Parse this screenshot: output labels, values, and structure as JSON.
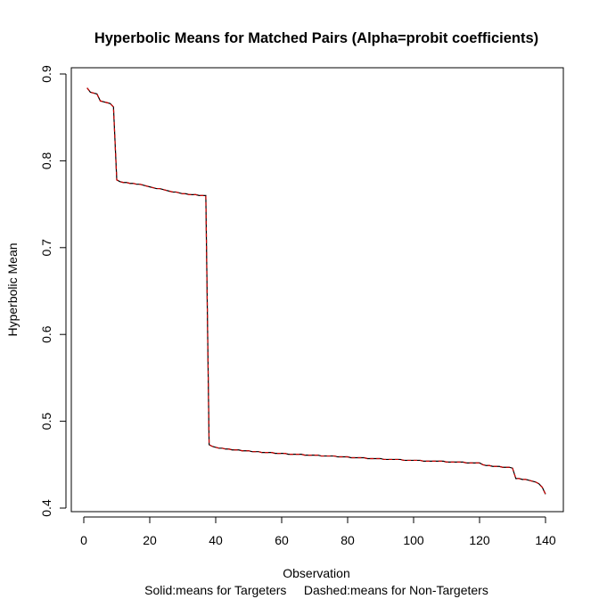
{
  "chart_data": {
    "type": "line",
    "title": "Hyperbolic Means for Matched Pairs (Alpha=probit coefficients)",
    "xlabel": "Observation",
    "subtitle": "Solid:means for Targeters     Dashed:means for Non-Targeters",
    "ylabel": "Hyperbolic Mean",
    "xlim": [
      0,
      140
    ],
    "ylim": [
      0.4,
      0.9
    ],
    "xticks": [
      "0",
      "20",
      "40",
      "60",
      "80",
      "100",
      "120",
      "140"
    ],
    "yticks": [
      "0.4",
      "0.5",
      "0.6",
      "0.7",
      "0.8",
      "0.9"
    ],
    "grid": false,
    "series": [
      {
        "name": "Targeters",
        "style": "solid",
        "color": "#000000",
        "values": [
          0.884,
          0.879,
          0.878,
          0.877,
          0.869,
          0.868,
          0.867,
          0.866,
          0.862,
          0.778,
          0.776,
          0.775,
          0.775,
          0.774,
          0.774,
          0.773,
          0.773,
          0.772,
          0.771,
          0.77,
          0.769,
          0.768,
          0.768,
          0.767,
          0.766,
          0.765,
          0.764,
          0.764,
          0.763,
          0.762,
          0.762,
          0.761,
          0.761,
          0.761,
          0.76,
          0.76,
          0.76,
          0.473,
          0.471,
          0.47,
          0.469,
          0.469,
          0.468,
          0.468,
          0.467,
          0.467,
          0.467,
          0.466,
          0.466,
          0.466,
          0.465,
          0.465,
          0.465,
          0.464,
          0.464,
          0.464,
          0.464,
          0.463,
          0.463,
          0.463,
          0.463,
          0.462,
          0.462,
          0.462,
          0.462,
          0.462,
          0.461,
          0.461,
          0.461,
          0.461,
          0.461,
          0.46,
          0.46,
          0.46,
          0.46,
          0.46,
          0.459,
          0.459,
          0.459,
          0.459,
          0.458,
          0.458,
          0.458,
          0.458,
          0.458,
          0.457,
          0.457,
          0.457,
          0.457,
          0.457,
          0.456,
          0.456,
          0.456,
          0.456,
          0.456,
          0.456,
          0.455,
          0.455,
          0.455,
          0.455,
          0.455,
          0.455,
          0.454,
          0.454,
          0.454,
          0.454,
          0.454,
          0.454,
          0.454,
          0.453,
          0.453,
          0.453,
          0.453,
          0.453,
          0.453,
          0.452,
          0.452,
          0.452,
          0.452,
          0.452,
          0.45,
          0.449,
          0.449,
          0.448,
          0.448,
          0.448,
          0.447,
          0.447,
          0.447,
          0.446,
          0.434,
          0.434,
          0.433,
          0.433,
          0.432,
          0.431,
          0.43,
          0.428,
          0.424,
          0.416
        ]
      },
      {
        "name": "Non-Targeters",
        "style": "dashed",
        "color": "#cc0000",
        "values": [
          0.884,
          0.879,
          0.878,
          0.877,
          0.869,
          0.868,
          0.867,
          0.866,
          0.862,
          0.778,
          0.776,
          0.775,
          0.775,
          0.774,
          0.774,
          0.773,
          0.773,
          0.772,
          0.771,
          0.77,
          0.769,
          0.768,
          0.768,
          0.767,
          0.766,
          0.765,
          0.764,
          0.764,
          0.763,
          0.762,
          0.762,
          0.761,
          0.761,
          0.761,
          0.76,
          0.76,
          0.76,
          0.473,
          0.471,
          0.47,
          0.469,
          0.469,
          0.468,
          0.468,
          0.467,
          0.467,
          0.467,
          0.466,
          0.466,
          0.466,
          0.465,
          0.465,
          0.465,
          0.464,
          0.464,
          0.464,
          0.464,
          0.463,
          0.463,
          0.463,
          0.463,
          0.462,
          0.462,
          0.462,
          0.462,
          0.462,
          0.461,
          0.461,
          0.461,
          0.461,
          0.461,
          0.46,
          0.46,
          0.46,
          0.46,
          0.46,
          0.459,
          0.459,
          0.459,
          0.459,
          0.458,
          0.458,
          0.458,
          0.458,
          0.458,
          0.457,
          0.457,
          0.457,
          0.457,
          0.457,
          0.456,
          0.456,
          0.456,
          0.456,
          0.456,
          0.456,
          0.455,
          0.455,
          0.455,
          0.455,
          0.455,
          0.455,
          0.454,
          0.454,
          0.454,
          0.454,
          0.454,
          0.454,
          0.454,
          0.453,
          0.453,
          0.453,
          0.453,
          0.453,
          0.453,
          0.452,
          0.452,
          0.452,
          0.452,
          0.452,
          0.45,
          0.449,
          0.449,
          0.448,
          0.448,
          0.448,
          0.447,
          0.447,
          0.447,
          0.446,
          0.434,
          0.434,
          0.433,
          0.433,
          0.432,
          0.431,
          0.43,
          0.428,
          0.424,
          0.416
        ]
      }
    ]
  }
}
